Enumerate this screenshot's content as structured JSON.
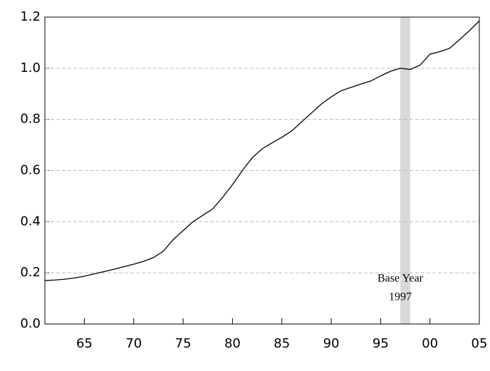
{
  "chart_data": {
    "type": "line",
    "x": [
      1961,
      1962,
      1963,
      1964,
      1965,
      1966,
      1967,
      1968,
      1969,
      1970,
      1971,
      1972,
      1973,
      1974,
      1975,
      1976,
      1977,
      1978,
      1979,
      1980,
      1981,
      1982,
      1983,
      1984,
      1985,
      1986,
      1987,
      1988,
      1989,
      1990,
      1991,
      1992,
      1993,
      1994,
      1995,
      1996,
      1997,
      1998,
      1999,
      2000,
      2001,
      2002,
      2003,
      2004,
      2005
    ],
    "series": [
      {
        "color": "#000000",
        "values": [
          0.17,
          0.172,
          0.175,
          0.18,
          0.187,
          0.196,
          0.205,
          0.214,
          0.224,
          0.234,
          0.245,
          0.26,
          0.285,
          0.33,
          0.365,
          0.4,
          0.425,
          0.45,
          0.495,
          0.545,
          0.6,
          0.65,
          0.685,
          0.708,
          0.73,
          0.755,
          0.79,
          0.825,
          0.86,
          0.888,
          0.912,
          0.925,
          0.938,
          0.95,
          0.97,
          0.988,
          1.0,
          0.995,
          1.012,
          1.055,
          1.065,
          1.078,
          1.112,
          1.147,
          1.185
        ]
      }
    ],
    "xlim": [
      1961,
      2005
    ],
    "xticks": [
      {
        "value": 1965,
        "label": "65"
      },
      {
        "value": 1970,
        "label": "70"
      },
      {
        "value": 1975,
        "label": "75"
      },
      {
        "value": 1980,
        "label": "80"
      },
      {
        "value": 1985,
        "label": "85"
      },
      {
        "value": 1990,
        "label": "90"
      },
      {
        "value": 1995,
        "label": "95"
      },
      {
        "value": 2000,
        "label": "00"
      },
      {
        "value": 2005,
        "label": "05"
      }
    ],
    "ylim": [
      0,
      1.2
    ],
    "yticks": [
      {
        "value": 0,
        "label": "0.0"
      },
      {
        "value": 0.2,
        "label": "0.2"
      },
      {
        "value": 0.4,
        "label": "0.4"
      },
      {
        "value": 0.6,
        "label": "0.6"
      },
      {
        "value": 0.8,
        "label": "0.8"
      },
      {
        "value": 1,
        "label": "1.0"
      },
      {
        "value": 1.2,
        "label": "1.2"
      }
    ],
    "grid": true,
    "shaded_region": [
      1997,
      1998
    ],
    "shaded_color": "#d9d9d9",
    "annotation": [
      "Base Year",
      "1997"
    ]
  }
}
